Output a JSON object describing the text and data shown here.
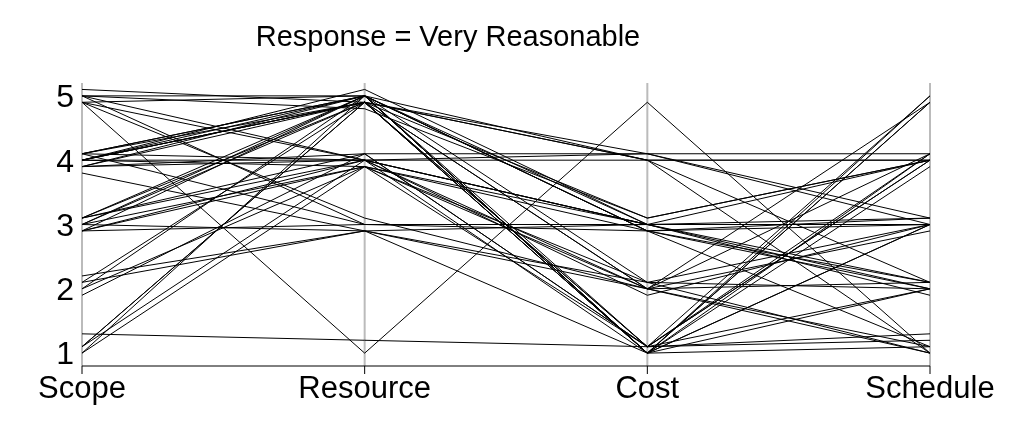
{
  "chart_data": {
    "type": "line",
    "title": "Response = Very Reasonable",
    "categories": [
      "Scope",
      "Resource",
      "Cost",
      "Schedule"
    ],
    "ylim": [
      0.8,
      5.2
    ],
    "yticks": [
      1,
      2,
      3,
      4,
      5
    ],
    "grid": "x",
    "marker": "none",
    "line_style": "solid",
    "series": [
      {
        "color": "#000000",
        "values": [
          5.0,
          5.0,
          4.0,
          4.0
        ]
      },
      {
        "color": "#000000",
        "values": [
          4.9,
          5.0,
          3.0,
          3.0
        ]
      },
      {
        "color": "#000000",
        "values": [
          5.0,
          4.0,
          4.1,
          4.1
        ]
      },
      {
        "color": "#000000",
        "values": [
          4.9,
          4.0,
          3.0,
          2.1
        ]
      },
      {
        "color": "#000000",
        "values": [
          5.0,
          3.0,
          3.0,
          3.0
        ]
      },
      {
        "color": "#000000",
        "values": [
          4.9,
          1.0,
          4.9,
          1.0
        ]
      },
      {
        "color": "#000000",
        "values": [
          5.1,
          4.9,
          1.1,
          2.0
        ]
      },
      {
        "color": "#000000",
        "values": [
          4.9,
          3.1,
          2.0,
          1.1
        ]
      },
      {
        "color": "#000000",
        "values": [
          4.1,
          5.0,
          1.0,
          4.9
        ]
      },
      {
        "color": "#000000",
        "values": [
          4.0,
          4.9,
          1.1,
          4.0
        ]
      },
      {
        "color": "#000000",
        "values": [
          3.9,
          5.0,
          1.0,
          3.0
        ]
      },
      {
        "color": "#000000",
        "values": [
          4.1,
          4.9,
          2.0,
          2.1
        ]
      },
      {
        "color": "#000000",
        "values": [
          4.0,
          5.1,
          3.0,
          3.1
        ]
      },
      {
        "color": "#000000",
        "values": [
          3.9,
          4.9,
          4.0,
          1.0
        ]
      },
      {
        "color": "#000000",
        "values": [
          4.1,
          4.0,
          3.0,
          3.0
        ]
      },
      {
        "color": "#000000",
        "values": [
          4.0,
          3.9,
          2.1,
          2.0
        ]
      },
      {
        "color": "#000000",
        "values": [
          3.9,
          4.1,
          1.1,
          4.1
        ]
      },
      {
        "color": "#000000",
        "values": [
          4.0,
          4.0,
          4.0,
          4.0
        ]
      },
      {
        "color": "#000000",
        "values": [
          4.1,
          3.0,
          2.9,
          3.1
        ]
      },
      {
        "color": "#000000",
        "values": [
          3.8,
          2.9,
          1.0,
          1.1
        ]
      },
      {
        "color": "#000000",
        "values": [
          4.0,
          5.0,
          2.9,
          2.0
        ]
      },
      {
        "color": "#000000",
        "values": [
          3.9,
          4.0,
          1.9,
          3.0
        ]
      },
      {
        "color": "#000000",
        "values": [
          4.1,
          5.0,
          1.1,
          1.2
        ]
      },
      {
        "color": "#000000",
        "values": [
          4.0,
          4.9,
          3.1,
          4.0
        ]
      },
      {
        "color": "#000000",
        "values": [
          3.1,
          5.0,
          1.0,
          5.0
        ]
      },
      {
        "color": "#000000",
        "values": [
          3.0,
          4.9,
          2.0,
          4.1
        ]
      },
      {
        "color": "#000000",
        "values": [
          2.9,
          4.0,
          3.0,
          2.0
        ]
      },
      {
        "color": "#000000",
        "values": [
          3.1,
          4.1,
          4.1,
          3.0
        ]
      },
      {
        "color": "#000000",
        "values": [
          3.0,
          3.9,
          2.9,
          1.1
        ]
      },
      {
        "color": "#000000",
        "values": [
          2.9,
          3.0,
          3.0,
          3.0
        ]
      },
      {
        "color": "#000000",
        "values": [
          3.1,
          4.9,
          1.0,
          3.9
        ]
      },
      {
        "color": "#000000",
        "values": [
          3.0,
          5.0,
          2.1,
          1.0
        ]
      },
      {
        "color": "#000000",
        "values": [
          2.9,
          3.9,
          1.1,
          5.0
        ]
      },
      {
        "color": "#000000",
        "values": [
          3.1,
          4.0,
          2.0,
          2.9
        ]
      },
      {
        "color": "#000000",
        "values": [
          3.0,
          2.9,
          3.0,
          4.0
        ]
      },
      {
        "color": "#000000",
        "values": [
          2.9,
          5.0,
          2.9,
          2.1
        ]
      },
      {
        "color": "#000000",
        "values": [
          2.2,
          2.9,
          2.0,
          4.9
        ]
      },
      {
        "color": "#000000",
        "values": [
          2.1,
          4.9,
          1.0,
          3.0
        ]
      },
      {
        "color": "#000000",
        "values": [
          2.0,
          3.9,
          3.0,
          1.9
        ]
      },
      {
        "color": "#000000",
        "values": [
          1.9,
          4.1,
          1.1,
          4.0
        ]
      },
      {
        "color": "#000000",
        "values": [
          2.1,
          2.9,
          2.1,
          3.0
        ]
      },
      {
        "color": "#000000",
        "values": [
          2.0,
          5.0,
          1.0,
          2.0
        ]
      },
      {
        "color": "#000000",
        "values": [
          1.3,
          1.2,
          1.1,
          1.3
        ]
      },
      {
        "color": "#000000",
        "values": [
          1.1,
          4.9,
          1.0,
          4.9
        ]
      },
      {
        "color": "#000000",
        "values": [
          1.0,
          5.0,
          2.9,
          3.0
        ]
      },
      {
        "color": "#000000",
        "values": [
          1.1,
          4.0,
          1.0,
          4.1
        ]
      },
      {
        "color": "#000000",
        "values": [
          1.0,
          3.9,
          2.0,
          1.0
        ]
      },
      {
        "color": "#000000",
        "values": [
          1.1,
          4.9,
          4.0,
          2.1
        ]
      },
      {
        "color": "#000000",
        "values": [
          5.0,
          4.8,
          3.1,
          4.0
        ]
      },
      {
        "color": "#000000",
        "values": [
          4.0,
          4.9,
          4.1,
          3.1
        ]
      }
    ]
  }
}
